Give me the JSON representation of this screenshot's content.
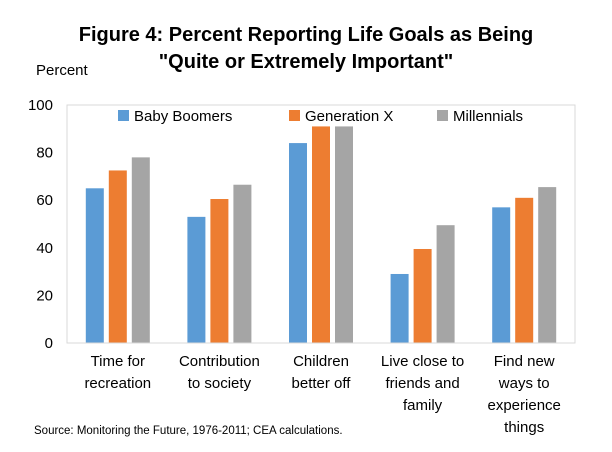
{
  "chart_data": {
    "type": "bar",
    "title_lines": [
      "Figure 4: Percent Reporting Life Goals as Being",
      "\"Quite or Extremely Important\""
    ],
    "ylabel": "Percent",
    "ylim": [
      0,
      100
    ],
    "yticks": [
      "0",
      "20",
      "40",
      "60",
      "80",
      "100"
    ],
    "categories": [
      [
        "Time for",
        "recreation"
      ],
      [
        "Contribution",
        "to society"
      ],
      [
        "Children",
        "better off"
      ],
      [
        "Live close to",
        "friends and",
        "family"
      ],
      [
        "Find new",
        "ways to",
        "experience",
        "things"
      ]
    ],
    "series": [
      {
        "name": "Baby Boomers",
        "color": "#5b9bd5",
        "values": [
          65,
          53,
          84,
          29,
          57
        ]
      },
      {
        "name": "Generation X",
        "color": "#ed7d31",
        "values": [
          72.5,
          60.5,
          91,
          39.5,
          61
        ]
      },
      {
        "name": "Millennials",
        "color": "#a5a5a5",
        "values": [
          78,
          66.5,
          91,
          49.5,
          65.5
        ]
      }
    ],
    "legend_position": "top",
    "grid": false,
    "source": "Source: Monitoring the Future, 1976-2011; CEA calculations."
  }
}
